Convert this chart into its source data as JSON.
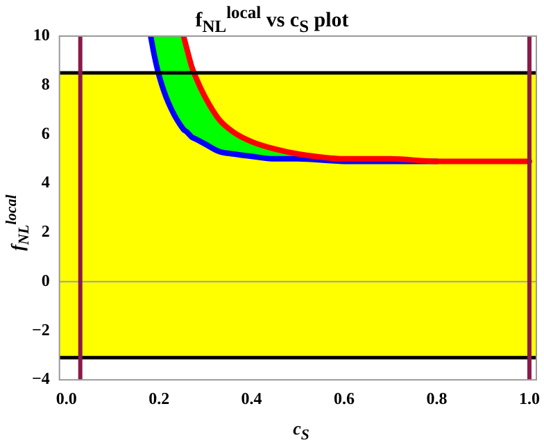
{
  "chart_data": {
    "type": "line",
    "title": "f$_{NL}$$^{local}$ vs  c$_{S}$ plot",
    "xlabel": "c$_{S}$",
    "ylabel": "f$_{NL}$$^{local}$",
    "xlim": [
      -0.015,
      1.015
    ],
    "ylim": [
      -4,
      10
    ],
    "xticks": [
      {
        "value": 0,
        "label": "0.0"
      },
      {
        "value": 0.2,
        "label": "0.2"
      },
      {
        "value": 0.4,
        "label": "0.4"
      },
      {
        "value": 0.6,
        "label": "0.6"
      },
      {
        "value": 0.8,
        "label": "0.8"
      },
      {
        "value": 1,
        "label": "1.0"
      }
    ],
    "yticks": [
      {
        "value": -4,
        "label": "−4"
      },
      {
        "value": -2,
        "label": "−2"
      },
      0,
      2,
      4,
      6,
      8,
      10
    ],
    "grid": false,
    "legend": false,
    "marker": "none",
    "line_style": "solid",
    "series": [
      {
        "type": "area",
        "color": "#00ff00",
        "x": [
          0.182,
          0.19,
          0.2,
          0.22,
          0.253,
          0.26,
          0.27,
          0.28,
          0.3,
          0.33,
          0.36,
          0.4,
          0.45,
          0.5,
          0.6
        ],
        "values": [
          10.0,
          10.0,
          10.0,
          10.0,
          10.0,
          9.5,
          8.8,
          8.3,
          7.5,
          6.6,
          6.1,
          5.7,
          5.4,
          5.2,
          5.0
        ]
      },
      {
        "color": "#0000ff",
        "x": [
          0.182,
          0.19,
          0.2,
          0.22,
          0.253,
          0.26,
          0.27,
          0.28,
          0.3,
          0.33,
          0.36,
          0.4,
          0.45,
          0.5,
          0.6,
          0.8
        ],
        "values": [
          10.0,
          9.2,
          8.4,
          7.3,
          6.2,
          6.1,
          5.9,
          5.8,
          5.6,
          5.3,
          5.2,
          5.1,
          5.0,
          5.0,
          4.9,
          4.9
        ]
      },
      {
        "color": "#ff0000",
        "x": [
          0.253,
          0.26,
          0.27,
          0.28,
          0.3,
          0.33,
          0.36,
          0.4,
          0.45,
          0.5,
          0.6,
          0.7,
          0.8,
          1.0
        ],
        "values": [
          10.0,
          9.5,
          8.8,
          8.3,
          7.5,
          6.6,
          6.1,
          5.7,
          5.4,
          5.2,
          5.0,
          5.0,
          4.9,
          4.9
        ]
      }
    ],
    "bands": [
      {
        "axis": "y",
        "from": -3.1,
        "to": 8.5,
        "color": "#ffff00"
      }
    ],
    "ref_lines": [
      {
        "axis": "y",
        "value": 8.5,
        "color": "#000000"
      },
      {
        "axis": "y",
        "value": -3.1,
        "color": "#000000"
      },
      {
        "axis": "y",
        "value": 0,
        "color": "#a0a0a0"
      },
      {
        "axis": "x",
        "value": 0.03,
        "color": "#8b1a4a"
      },
      {
        "axis": "x",
        "value": 1.0,
        "color": "#8b1a4a"
      }
    ]
  }
}
